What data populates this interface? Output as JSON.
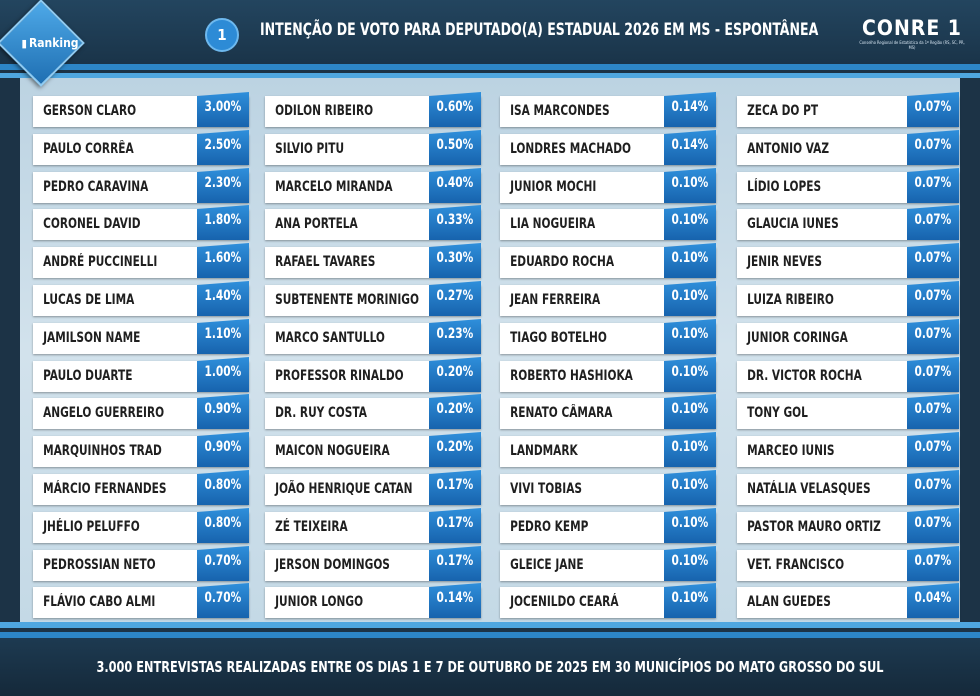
{
  "header": {
    "logo_label": "Ranking",
    "chart_number": "1",
    "title": "INTENÇÃO DE VOTO PARA DEPUTADO(A) ESTADUAL 2026 EM MS - ESPONTÂNEA",
    "brand_name": "CONRE 1",
    "brand_subtitle": "Conselho Regional de Estatística da 1ª Região (RS, SC, PR, MS)"
  },
  "footer": {
    "text": "3.000 ENTREVISTAS REALIZADAS ENTRE OS DIAS 1 E 7 DE OUTUBRO DE 2025 EM 30 MUNICÍPIOS DO MATO GROSSO DO SUL"
  },
  "colors": {
    "header_bg": "#1a3449",
    "accent": "#2d86c7",
    "percent_box": "#1f76c4",
    "panel_bg": "#c8dce8"
  },
  "chart_data": {
    "type": "table",
    "title": "INTENÇÃO DE VOTO PARA DEPUTADO(A) ESTADUAL 2026 EM MS - ESPONTÂNEA",
    "columns": [
      [
        {
          "name": "GERSON CLARO",
          "percent": "3.00%"
        },
        {
          "name": "PAULO CORRÊA",
          "percent": "2.50%"
        },
        {
          "name": "PEDRO CARAVINA",
          "percent": "2.30%"
        },
        {
          "name": "CORONEL DAVID",
          "percent": "1.80%"
        },
        {
          "name": "ANDRÉ PUCCINELLI",
          "percent": "1.60%"
        },
        {
          "name": "LUCAS DE LIMA",
          "percent": "1.40%"
        },
        {
          "name": "JAMILSON NAME",
          "percent": "1.10%"
        },
        {
          "name": "PAULO DUARTE",
          "percent": "1.00%"
        },
        {
          "name": "ANGELO GUERREIRO",
          "percent": "0.90%"
        },
        {
          "name": "MARQUINHOS TRAD",
          "percent": "0.90%"
        },
        {
          "name": "MÁRCIO FERNANDES",
          "percent": "0.80%"
        },
        {
          "name": "JHÉLIO PELUFFO",
          "percent": "0.80%"
        },
        {
          "name": "PEDROSSIAN NETO",
          "percent": "0.70%"
        },
        {
          "name": "FLÁVIO CABO ALMI",
          "percent": "0.70%"
        }
      ],
      [
        {
          "name": "ODILON RIBEIRO",
          "percent": "0.60%"
        },
        {
          "name": "SILVIO PITU",
          "percent": "0.50%"
        },
        {
          "name": "MARCELO MIRANDA",
          "percent": "0.40%"
        },
        {
          "name": "ANA PORTELA",
          "percent": "0.33%"
        },
        {
          "name": "RAFAEL TAVARES",
          "percent": "0.30%"
        },
        {
          "name": "SUBTENENTE MORINIGO",
          "percent": "0.27%"
        },
        {
          "name": "MARCO SANTULLO",
          "percent": "0.23%"
        },
        {
          "name": "PROFESSOR RINALDO",
          "percent": "0.20%"
        },
        {
          "name": "DR. RUY COSTA",
          "percent": "0.20%"
        },
        {
          "name": "MAICON NOGUEIRA",
          "percent": "0.20%"
        },
        {
          "name": "JOÃO HENRIQUE CATAN",
          "percent": "0.17%"
        },
        {
          "name": "ZÉ TEIXEIRA",
          "percent": "0.17%"
        },
        {
          "name": "JERSON DOMINGOS",
          "percent": "0.17%"
        },
        {
          "name": "JUNIOR LONGO",
          "percent": "0.14%"
        }
      ],
      [
        {
          "name": "ISA MARCONDES",
          "percent": "0.14%"
        },
        {
          "name": "LONDRES MACHADO",
          "percent": "0.14%"
        },
        {
          "name": "JUNIOR MOCHI",
          "percent": "0.10%"
        },
        {
          "name": "LIA NOGUEIRA",
          "percent": "0.10%"
        },
        {
          "name": "EDUARDO ROCHA",
          "percent": "0.10%"
        },
        {
          "name": "JEAN FERREIRA",
          "percent": "0.10%"
        },
        {
          "name": "TIAGO BOTELHO",
          "percent": "0.10%"
        },
        {
          "name": "ROBERTO HASHIOKA",
          "percent": "0.10%"
        },
        {
          "name": "RENATO CÂMARA",
          "percent": "0.10%"
        },
        {
          "name": "LANDMARK",
          "percent": "0.10%"
        },
        {
          "name": "VIVI TOBIAS",
          "percent": "0.10%"
        },
        {
          "name": "PEDRO KEMP",
          "percent": "0.10%"
        },
        {
          "name": "GLEICE JANE",
          "percent": "0.10%"
        },
        {
          "name": "JOCENILDO CEARÁ",
          "percent": "0.10%"
        }
      ],
      [
        {
          "name": "ZECA DO PT",
          "percent": "0.07%"
        },
        {
          "name": "ANTONIO VAZ",
          "percent": "0.07%"
        },
        {
          "name": "LÍDIO LOPES",
          "percent": "0.07%"
        },
        {
          "name": "GLAUCIA IUNES",
          "percent": "0.07%"
        },
        {
          "name": "JENIR NEVES",
          "percent": "0.07%"
        },
        {
          "name": "LUIZA RIBEIRO",
          "percent": "0.07%"
        },
        {
          "name": "JUNIOR CORINGA",
          "percent": "0.07%"
        },
        {
          "name": "DR. VICTOR ROCHA",
          "percent": "0.07%"
        },
        {
          "name": "TONY GOL",
          "percent": "0.07%"
        },
        {
          "name": "MARCEO IUNIS",
          "percent": "0.07%"
        },
        {
          "name": "NATÁLIA VELASQUES",
          "percent": "0.07%"
        },
        {
          "name": "PASTOR MAURO ORTIZ",
          "percent": "0.07%"
        },
        {
          "name": "VET. FRANCISCO",
          "percent": "0.07%"
        },
        {
          "name": "ALAN GUEDES",
          "percent": "0.04%"
        }
      ]
    ]
  }
}
